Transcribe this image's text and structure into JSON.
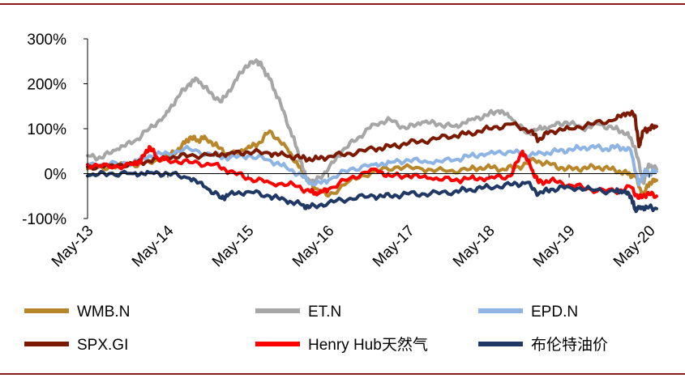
{
  "chart_data": {
    "type": "line",
    "title": "",
    "xlabel": "",
    "ylabel": "",
    "ylim": [
      -100,
      300
    ],
    "yticks": [
      -100,
      0,
      100,
      200,
      300
    ],
    "ytick_labels": [
      "-100%",
      "0%",
      "100%",
      "200%",
      "300%"
    ],
    "xlim": [
      2013.33,
      2020.42
    ],
    "xticks": [
      2013.33,
      2014.33,
      2015.33,
      2016.33,
      2017.33,
      2018.33,
      2019.33,
      2020.33
    ],
    "xtick_labels": [
      "May-13",
      "May-14",
      "May-15",
      "May-16",
      "May-17",
      "May-18",
      "May-19",
      "May-20"
    ],
    "legend_position": "bottom",
    "series": [
      {
        "name": "WMB.N",
        "color": "#b8862b",
        "x": [
          2013.33,
          2013.6,
          2013.9,
          2014.1,
          2014.35,
          2014.5,
          2014.6,
          2014.7,
          2014.8,
          2014.95,
          2015.1,
          2015.3,
          2015.45,
          2015.6,
          2015.8,
          2015.95,
          2016.05,
          2016.15,
          2016.33,
          2016.6,
          2016.9,
          2017.2,
          2017.5,
          2017.8,
          2018.1,
          2018.3,
          2018.5,
          2018.7,
          2018.9,
          2019.1,
          2019.3,
          2019.5,
          2019.7,
          2019.9,
          2020.05,
          2020.15,
          2020.25,
          2020.33,
          2020.42
        ],
        "y": [
          10,
          15,
          20,
          25,
          40,
          60,
          80,
          75,
          80,
          60,
          40,
          55,
          65,
          95,
          60,
          20,
          -10,
          -30,
          -50,
          -15,
          5,
          15,
          10,
          5,
          10,
          15,
          10,
          15,
          30,
          20,
          10,
          12,
          15,
          8,
          0,
          -5,
          -50,
          -20,
          -15
        ]
      },
      {
        "name": "ET.N",
        "color": "#a6a6a6",
        "x": [
          2013.33,
          2013.5,
          2013.7,
          2013.9,
          2014.1,
          2014.3,
          2014.45,
          2014.6,
          2014.7,
          2014.85,
          2015.0,
          2015.15,
          2015.3,
          2015.45,
          2015.5,
          2015.6,
          2015.7,
          2015.85,
          2015.95,
          2016.05,
          2016.15,
          2016.33,
          2016.5,
          2016.7,
          2016.9,
          2017.1,
          2017.3,
          2017.5,
          2017.7,
          2017.9,
          2018.1,
          2018.3,
          2018.45,
          2018.6,
          2018.8,
          2018.95,
          2019.1,
          2019.3,
          2019.5,
          2019.7,
          2019.9,
          2020.05,
          2020.15,
          2020.25,
          2020.33,
          2020.42
        ],
        "y": [
          40,
          35,
          55,
          70,
          100,
          130,
          170,
          200,
          210,
          180,
          160,
          200,
          240,
          250,
          240,
          210,
          170,
          100,
          50,
          -10,
          -20,
          10,
          50,
          80,
          110,
          120,
          100,
          115,
          110,
          105,
          120,
          130,
          140,
          125,
          90,
          100,
          105,
          115,
          100,
          110,
          100,
          90,
          60,
          -20,
          20,
          10
        ]
      },
      {
        "name": "EPD.N",
        "color": "#8eb4e3",
        "x": [
          2013.33,
          2013.6,
          2013.9,
          2014.1,
          2014.33,
          2014.6,
          2014.9,
          2015.1,
          2015.33,
          2015.6,
          2015.8,
          2016.0,
          2016.15,
          2016.33,
          2016.6,
          2016.9,
          2017.1,
          2017.33,
          2017.6,
          2017.9,
          2018.1,
          2018.33,
          2018.6,
          2018.8,
          2019.0,
          2019.2,
          2019.4,
          2019.6,
          2019.8,
          2019.95,
          2020.1,
          2020.2,
          2020.27,
          2020.33,
          2020.42
        ],
        "y": [
          20,
          20,
          25,
          40,
          45,
          55,
          40,
          35,
          40,
          30,
          15,
          -5,
          -25,
          -15,
          10,
          20,
          25,
          30,
          25,
          30,
          40,
          45,
          50,
          40,
          45,
          50,
          55,
          60,
          55,
          60,
          50,
          -25,
          5,
          0,
          5
        ]
      },
      {
        "name": "SPX.GI",
        "color": "#7b1a00",
        "x": [
          2013.33,
          2013.6,
          2013.9,
          2014.1,
          2014.33,
          2014.6,
          2014.9,
          2015.1,
          2015.33,
          2015.6,
          2015.8,
          2016.0,
          2016.15,
          2016.33,
          2016.6,
          2016.9,
          2017.1,
          2017.33,
          2017.6,
          2017.9,
          2018.1,
          2018.33,
          2018.6,
          2018.85,
          2018.95,
          2019.1,
          2019.33,
          2019.6,
          2019.9,
          2020.05,
          2020.15,
          2020.2,
          2020.25,
          2020.33,
          2020.42
        ],
        "y": [
          15,
          18,
          22,
          28,
          35,
          40,
          42,
          45,
          48,
          45,
          40,
          35,
          32,
          38,
          45,
          55,
          60,
          68,
          75,
          85,
          90,
          100,
          110,
          95,
          75,
          95,
          100,
          110,
          120,
          135,
          130,
          60,
          95,
          100,
          105
        ]
      },
      {
        "name": "Henry Hub天然气",
        "color": "#ff0000",
        "x": [
          2013.33,
          2013.6,
          2013.9,
          2014.0,
          2014.1,
          2014.2,
          2014.33,
          2014.6,
          2014.9,
          2015.1,
          2015.33,
          2015.6,
          2015.9,
          2016.1,
          2016.2,
          2016.33,
          2016.6,
          2016.9,
          2017.1,
          2017.33,
          2017.6,
          2017.9,
          2018.1,
          2018.33,
          2018.6,
          2018.75,
          2018.85,
          2018.95,
          2019.1,
          2019.33,
          2019.6,
          2019.9,
          2020.1,
          2020.2,
          2020.3,
          2020.42
        ],
        "y": [
          20,
          15,
          20,
          30,
          60,
          35,
          30,
          25,
          20,
          5,
          -10,
          -20,
          -25,
          -40,
          -45,
          -35,
          -10,
          10,
          -5,
          -5,
          -10,
          -15,
          -10,
          -10,
          -5,
          50,
          15,
          -20,
          -15,
          -25,
          -35,
          -40,
          -30,
          -55,
          -45,
          -50
        ]
      },
      {
        "name": "布伦特油价",
        "color": "#1f3864",
        "x": [
          2013.33,
          2013.6,
          2013.9,
          2014.1,
          2014.33,
          2014.6,
          2014.8,
          2015.0,
          2015.1,
          2015.33,
          2015.6,
          2015.8,
          2016.0,
          2016.1,
          2016.33,
          2016.6,
          2016.9,
          2017.1,
          2017.33,
          2017.6,
          2017.9,
          2018.1,
          2018.33,
          2018.6,
          2018.8,
          2018.95,
          2019.1,
          2019.33,
          2019.6,
          2019.9,
          2020.0,
          2020.1,
          2020.15,
          2020.2,
          2020.3,
          2020.42
        ],
        "y": [
          -5,
          0,
          0,
          2,
          0,
          -10,
          -30,
          -55,
          -45,
          -40,
          -50,
          -60,
          -70,
          -75,
          -65,
          -55,
          -50,
          -50,
          -45,
          -45,
          -40,
          -35,
          -30,
          -25,
          -20,
          -45,
          -35,
          -30,
          -35,
          -40,
          -40,
          -50,
          -80,
          -75,
          -75,
          -78
        ]
      }
    ]
  }
}
